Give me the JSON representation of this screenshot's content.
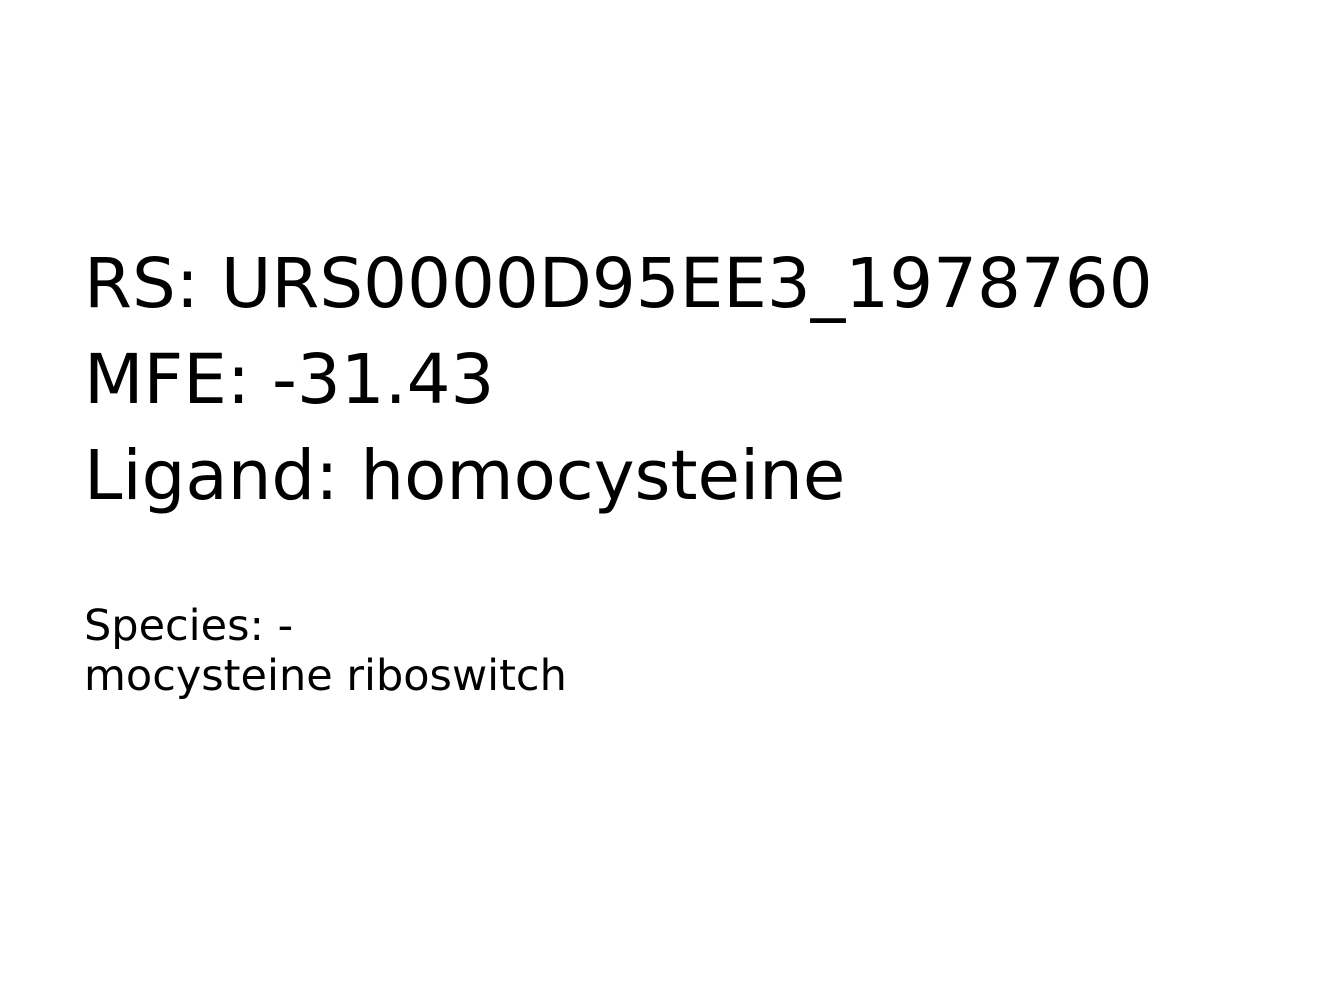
{
  "info": {
    "rs_line": "RS: URS0000D95EE3_1978760",
    "mfe_line": "MFE: -31.43",
    "ligand_line": "Ligand: homocysteine",
    "species_line": "Species: -",
    "description_line": "mocysteine riboswitch"
  },
  "colors": {
    "background": "#ffffff",
    "text": "#000000"
  }
}
